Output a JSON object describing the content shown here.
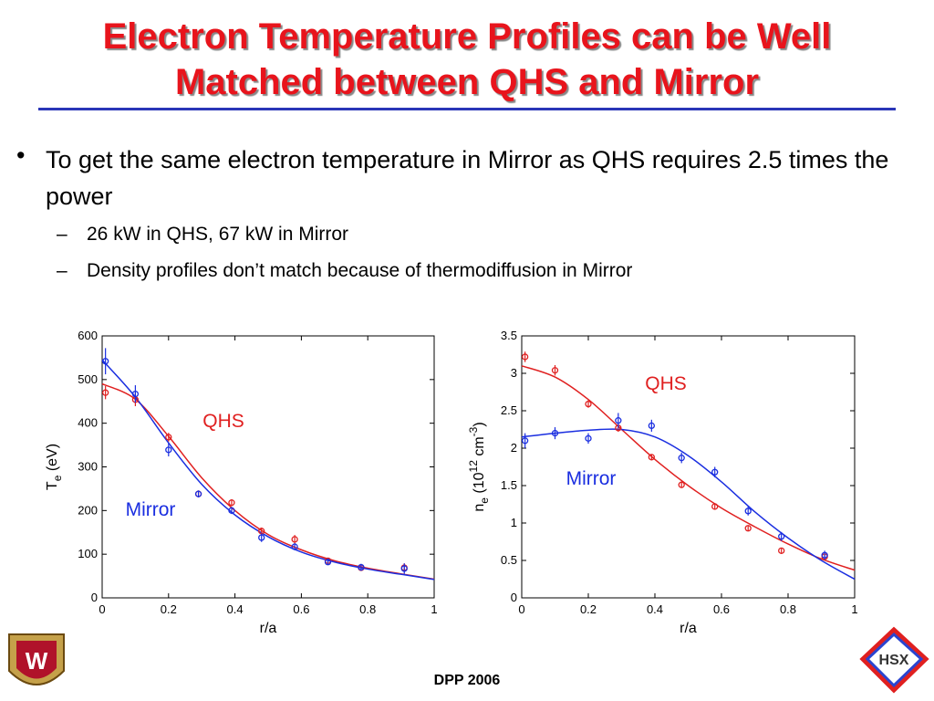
{
  "header": {
    "title": [
      "Electron Temperature Profiles can be Well",
      "Matched between QHS and Mirror"
    ]
  },
  "bullets": [
    {
      "text": "To get the same electron temperature in Mirror as QHS requires 2.5 times the power",
      "sub": [
        "26 kW in QHS, 67 kW in Mirror",
        "Density profiles don’t match because of thermodiffusion in Mirror"
      ]
    }
  ],
  "chart_data": [
    {
      "type": "scatter",
      "xlabel": "r/a",
      "ylabel": [
        "T",
        "e",
        " (eV)"
      ],
      "xlim": [
        0,
        1
      ],
      "xticks": [
        0,
        0.2,
        0.4,
        0.6,
        0.8,
        1
      ],
      "ylim": [
        0,
        600
      ],
      "yticks": [
        0,
        100,
        200,
        300,
        400,
        500,
        600
      ],
      "series": [
        {
          "name": "QHS",
          "color": "#e02020",
          "x": [
            0.01,
            0.1,
            0.2,
            0.29,
            0.39,
            0.48,
            0.58,
            0.68,
            0.78,
            0.91
          ],
          "values": [
            470,
            454,
            368,
            238,
            218,
            153,
            134,
            85,
            69,
            69
          ],
          "errors": [
            15,
            15,
            10,
            8,
            8,
            8,
            10,
            6,
            6,
            10
          ]
        },
        {
          "name": "Mirror",
          "color": "#1a2ee0",
          "x": [
            0.01,
            0.1,
            0.2,
            0.29,
            0.39,
            0.48,
            0.58,
            0.68,
            0.78,
            0.91
          ],
          "values": [
            542,
            467,
            339,
            238,
            200,
            138,
            117,
            82,
            70,
            67
          ],
          "errors": [
            30,
            20,
            15,
            8,
            8,
            10,
            8,
            6,
            8,
            12
          ]
        }
      ],
      "fits": [
        {
          "color": "#e02020",
          "x": [
            0,
            0.1,
            0.2,
            0.3,
            0.4,
            0.5,
            0.6,
            0.7,
            0.8,
            0.9,
            1
          ],
          "values": [
            490,
            455,
            370,
            275,
            200,
            145,
            110,
            85,
            68,
            55,
            43
          ]
        },
        {
          "color": "#1a2ee0",
          "x": [
            0,
            0.1,
            0.2,
            0.3,
            0.4,
            0.5,
            0.6,
            0.7,
            0.8,
            0.9,
            1
          ],
          "values": [
            545,
            460,
            355,
            260,
            190,
            140,
            105,
            82,
            66,
            54,
            42
          ]
        }
      ]
    },
    {
      "type": "scatter",
      "xlabel": "r/a",
      "ylabel": [
        "n",
        "e",
        " (10",
        "12",
        " cm",
        "-3",
        ")"
      ],
      "xlim": [
        0,
        1
      ],
      "xticks": [
        0,
        0.2,
        0.4,
        0.6,
        0.8,
        1
      ],
      "ylim": [
        0,
        3.5
      ],
      "yticks": [
        0,
        0.5,
        1,
        1.5,
        2,
        2.5,
        3,
        3.5
      ],
      "series": [
        {
          "name": "QHS",
          "color": "#e02020",
          "x": [
            0.01,
            0.1,
            0.2,
            0.29,
            0.39,
            0.48,
            0.58,
            0.68,
            0.78,
            0.91
          ],
          "values": [
            3.22,
            3.04,
            2.59,
            2.27,
            1.88,
            1.51,
            1.22,
            0.93,
            0.63,
            0.55
          ],
          "errors": [
            0.07,
            0.07,
            0.05,
            0.05,
            0.04,
            0.04,
            0.04,
            0.04,
            0.04,
            0.04
          ]
        },
        {
          "name": "Mirror",
          "color": "#1a2ee0",
          "x": [
            0.01,
            0.1,
            0.2,
            0.29,
            0.39,
            0.48,
            0.58,
            0.68,
            0.78,
            0.91
          ],
          "values": [
            2.1,
            2.2,
            2.13,
            2.37,
            2.3,
            1.87,
            1.68,
            1.16,
            0.82,
            0.57
          ],
          "errors": [
            0.1,
            0.08,
            0.07,
            0.1,
            0.08,
            0.07,
            0.07,
            0.06,
            0.06,
            0.06
          ]
        }
      ],
      "fits": [
        {
          "color": "#e02020",
          "x": [
            0,
            0.1,
            0.2,
            0.3,
            0.4,
            0.5,
            0.6,
            0.7,
            0.8,
            0.9,
            1
          ],
          "values": [
            3.1,
            2.95,
            2.65,
            2.25,
            1.85,
            1.5,
            1.2,
            0.95,
            0.72,
            0.52,
            0.37
          ]
        },
        {
          "color": "#1a2ee0",
          "x": [
            0,
            0.1,
            0.2,
            0.3,
            0.4,
            0.5,
            0.6,
            0.7,
            0.8,
            0.9,
            1
          ],
          "values": [
            2.15,
            2.2,
            2.24,
            2.25,
            2.15,
            1.9,
            1.55,
            1.15,
            0.8,
            0.5,
            0.25
          ]
        }
      ]
    }
  ],
  "footer": "DPP 2006",
  "logos": {
    "left": "W",
    "right": "HSX"
  }
}
